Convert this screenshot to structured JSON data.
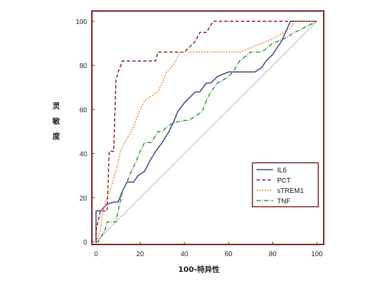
{
  "chart_data": {
    "type": "line",
    "xlabel": "100-特异性",
    "ylabel_chars": [
      "灵",
      "敏",
      "度"
    ],
    "xlim": [
      0,
      100
    ],
    "ylim": [
      0,
      100
    ],
    "xticks": [
      0,
      20,
      40,
      60,
      80,
      100
    ],
    "yticks": [
      0,
      20,
      40,
      60,
      80,
      100
    ],
    "xtick_labels": [
      "0",
      "20",
      "40",
      "60",
      "80",
      "100"
    ],
    "ytick_labels": [
      "0",
      "20",
      "40",
      "60",
      "80",
      "100"
    ],
    "grid": false,
    "legend_position": "lower-right",
    "reference_line": {
      "x": [
        0,
        100
      ],
      "y": [
        0,
        100
      ],
      "color": "#b4b4b4"
    },
    "series": [
      {
        "name": "IL6",
        "color": "#3b3b8f",
        "dash": "solid",
        "x": [
          0,
          0,
          2,
          5,
          8,
          10,
          12,
          14,
          17,
          19,
          22,
          24,
          27,
          30,
          33,
          35,
          37,
          40,
          45,
          47,
          50,
          52,
          55,
          60,
          65,
          70,
          72,
          75,
          77,
          80,
          82,
          84,
          88,
          100
        ],
        "y": [
          0,
          14,
          14,
          17,
          18,
          18,
          23,
          27,
          27,
          30,
          32,
          36,
          41,
          45,
          50,
          54,
          59,
          63,
          68,
          68,
          72,
          72,
          75,
          77,
          77,
          77,
          77,
          79,
          82,
          85,
          88,
          91,
          100,
          100
        ]
      },
      {
        "name": "PCT",
        "color": "#8b1a1a",
        "dash": "5,3",
        "x": [
          0,
          0,
          2,
          5,
          6,
          8,
          9,
          10,
          12,
          14,
          19,
          27,
          28,
          30,
          40,
          45,
          47,
          50,
          53,
          58,
          100
        ],
        "y": [
          0,
          5,
          14,
          14,
          41,
          41,
          73,
          77,
          82,
          82,
          82,
          82,
          86,
          86,
          86,
          91,
          95,
          95,
          100,
          100,
          100
        ],
        "step": true
      },
      {
        "name": "sTREM1",
        "color": "#e8862a",
        "dash": "2,2",
        "x": [
          0,
          2,
          3,
          5,
          7,
          9,
          10,
          11,
          13,
          16,
          18,
          20,
          22,
          25,
          28,
          30,
          32,
          34,
          36,
          38,
          40,
          50,
          60,
          65,
          70,
          75,
          80,
          85,
          88,
          90,
          100
        ],
        "y": [
          0,
          5,
          14,
          20,
          25,
          32,
          36,
          41,
          45,
          50,
          55,
          60,
          64,
          66,
          68,
          72,
          77,
          79,
          82,
          86,
          86,
          86,
          86,
          86,
          88,
          90,
          92,
          95,
          97,
          100,
          100
        ],
        "step": true
      },
      {
        "name": "TNF",
        "color": "#2e8b2e",
        "dash": "6,2,1,2",
        "x": [
          0,
          1,
          2,
          4,
          5,
          7,
          9,
          10,
          11,
          12,
          14,
          16,
          18,
          20,
          22,
          25,
          28,
          30,
          32,
          35,
          40,
          42,
          45,
          48,
          50,
          52,
          55,
          57,
          60,
          62,
          65,
          70,
          75,
          80,
          85,
          90,
          100
        ],
        "y": [
          0,
          0,
          2,
          5,
          9,
          9,
          9,
          14,
          18,
          23,
          27,
          32,
          36,
          41,
          45,
          45,
          50,
          50,
          52,
          54,
          55,
          55,
          57,
          59,
          64,
          68,
          72,
          73,
          75,
          77,
          82,
          86,
          86,
          90,
          92,
          95,
          100
        ]
      }
    ]
  }
}
